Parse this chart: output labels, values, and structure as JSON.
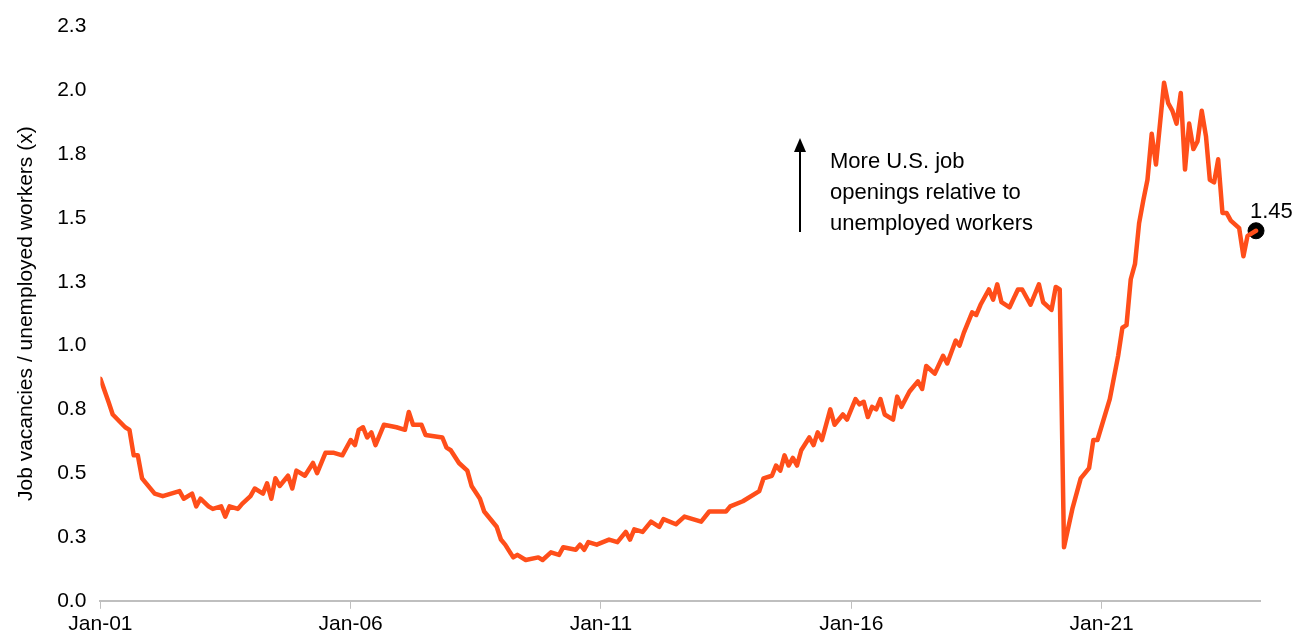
{
  "chart_data": {
    "type": "line",
    "ylabel": "Job vacancies / unemployed workers (x)",
    "x": [
      "2001-01",
      "2001-03",
      "2001-04",
      "2001-07",
      "2001-08",
      "2001-09",
      "2001-10",
      "2001-11",
      "2001-12",
      "2002-02",
      "2002-04",
      "2002-08",
      "2002-09",
      "2002-11",
      "2002-12",
      "2003-01",
      "2003-03",
      "2003-04",
      "2003-06",
      "2003-07",
      "2003-08",
      "2003-10",
      "2003-11",
      "2004-01",
      "2004-02",
      "2004-04",
      "2004-05",
      "2004-06",
      "2004-07",
      "2004-08",
      "2004-10",
      "2004-11",
      "2004-12",
      "2005-02",
      "2005-04",
      "2005-05",
      "2005-07",
      "2005-09",
      "2005-11",
      "2006-01",
      "2006-02",
      "2006-03",
      "2006-04",
      "2006-05",
      "2006-06",
      "2006-07",
      "2006-09",
      "2006-12",
      "2007-02",
      "2007-03",
      "2007-04",
      "2007-06",
      "2007-07",
      "2007-11",
      "2007-12",
      "2008-01",
      "2008-03",
      "2008-05",
      "2008-06",
      "2008-08",
      "2008-09",
      "2008-12",
      "2009-01",
      "2009-02",
      "2009-04",
      "2009-05",
      "2009-07",
      "2009-10",
      "2009-11",
      "2010-01",
      "2010-03",
      "2010-04",
      "2010-07",
      "2010-08",
      "2010-09",
      "2010-10",
      "2010-12",
      "2011-03",
      "2011-05",
      "2011-07",
      "2011-08",
      "2011-09",
      "2011-11",
      "2012-01",
      "2012-03",
      "2012-04",
      "2012-07",
      "2012-09",
      "2013-01",
      "2013-03",
      "2013-07",
      "2013-08",
      "2013-11",
      "2014-03",
      "2014-04",
      "2014-06",
      "2014-07",
      "2014-08",
      "2014-09",
      "2014-10",
      "2014-11",
      "2014-12",
      "2015-01",
      "2015-03",
      "2015-04",
      "2015-05",
      "2015-06",
      "2015-08",
      "2015-09",
      "2015-11",
      "2015-12",
      "2016-02",
      "2016-03",
      "2016-04",
      "2016-05",
      "2016-06",
      "2016-07",
      "2016-08",
      "2016-09",
      "2016-11",
      "2016-12",
      "2017-01",
      "2017-03",
      "2017-05",
      "2017-06",
      "2017-07",
      "2017-09",
      "2017-11",
      "2017-12",
      "2018-02",
      "2018-03",
      "2018-04",
      "2018-06",
      "2018-07",
      "2018-08",
      "2018-10",
      "2018-11",
      "2018-12",
      "2019-01",
      "2019-03",
      "2019-05",
      "2019-06",
      "2019-08",
      "2019-10",
      "2019-11",
      "2020-01",
      "2020-02",
      "2020-03",
      "2020-04",
      "2020-06",
      "2020-08",
      "2020-10",
      "2020-11",
      "2020-12",
      "2021-03",
      "2021-05",
      "2021-06",
      "2021-07",
      "2021-08",
      "2021-09",
      "2021-10",
      "2021-11",
      "2021-12",
      "2022-01",
      "2022-02",
      "2022-04",
      "2022-05",
      "2022-06",
      "2022-07",
      "2022-08",
      "2022-09",
      "2022-10",
      "2022-11",
      "2022-12",
      "2023-01",
      "2023-02",
      "2023-03",
      "2023-04",
      "2023-05",
      "2023-06",
      "2023-07",
      "2023-08",
      "2023-10",
      "2023-11",
      "2023-12",
      "2024-02"
    ],
    "series": [
      {
        "color": "#ff4e1a",
        "marker": "none",
        "values": [
          0.87,
          0.78,
          0.73,
          0.68,
          0.67,
          0.57,
          0.57,
          0.48,
          0.46,
          0.42,
          0.41,
          0.43,
          0.4,
          0.42,
          0.37,
          0.4,
          0.37,
          0.36,
          0.37,
          0.33,
          0.37,
          0.36,
          0.38,
          0.41,
          0.44,
          0.42,
          0.46,
          0.4,
          0.48,
          0.45,
          0.49,
          0.44,
          0.51,
          0.49,
          0.54,
          0.5,
          0.58,
          0.58,
          0.57,
          0.63,
          0.61,
          0.67,
          0.68,
          0.64,
          0.66,
          0.61,
          0.69,
          0.68,
          0.67,
          0.74,
          0.69,
          0.69,
          0.65,
          0.64,
          0.6,
          0.59,
          0.54,
          0.51,
          0.45,
          0.4,
          0.35,
          0.29,
          0.24,
          0.22,
          0.17,
          0.18,
          0.16,
          0.17,
          0.16,
          0.19,
          0.18,
          0.21,
          0.2,
          0.22,
          0.2,
          0.23,
          0.22,
          0.24,
          0.23,
          0.27,
          0.24,
          0.28,
          0.27,
          0.31,
          0.29,
          0.32,
          0.3,
          0.33,
          0.31,
          0.35,
          0.35,
          0.37,
          0.39,
          0.43,
          0.48,
          0.49,
          0.53,
          0.51,
          0.57,
          0.53,
          0.56,
          0.53,
          0.59,
          0.64,
          0.61,
          0.66,
          0.63,
          0.75,
          0.69,
          0.73,
          0.71,
          0.79,
          0.77,
          0.78,
          0.72,
          0.76,
          0.75,
          0.79,
          0.73,
          0.71,
          0.8,
          0.76,
          0.82,
          0.86,
          0.83,
          0.92,
          0.89,
          0.96,
          0.93,
          1.02,
          1.0,
          1.05,
          1.13,
          1.12,
          1.16,
          1.22,
          1.18,
          1.24,
          1.17,
          1.15,
          1.22,
          1.22,
          1.16,
          1.24,
          1.17,
          1.14,
          1.23,
          1.22,
          0.21,
          0.36,
          0.48,
          0.52,
          0.63,
          0.63,
          0.79,
          0.96,
          1.07,
          1.08,
          1.26,
          1.32,
          1.48,
          1.57,
          1.65,
          1.83,
          1.71,
          2.03,
          1.95,
          1.92,
          1.87,
          1.99,
          1.69,
          1.87,
          1.77,
          1.8,
          1.92,
          1.82,
          1.65,
          1.64,
          1.73,
          1.52,
          1.52,
          1.49,
          1.46,
          1.35,
          1.43,
          1.45
        ]
      },
      {
        "type": "scatter",
        "color": "#000000",
        "marker": "circle",
        "x": [
          "2024-02"
        ],
        "values": [
          1.45
        ]
      }
    ],
    "annotations": [
      "More U.S. job\nopenings relative to\nunemployed workers",
      {
        "text": "1.45",
        "x": "2024-02",
        "y": 1.45
      }
    ],
    "xlim": [
      "2001-01",
      "2024-03"
    ],
    "xticks": [
      {
        "value": "2001-01",
        "label": "Jan-01"
      },
      {
        "value": "2006-01",
        "label": "Jan-06"
      },
      {
        "value": "2011-01",
        "label": "Jan-11"
      },
      {
        "value": "2016-01",
        "label": "Jan-16"
      },
      {
        "value": "2021-01",
        "label": "Jan-21"
      }
    ],
    "ylim": [
      0,
      2.25
    ],
    "yticks": [
      {
        "value": 0,
        "label": "0.0"
      },
      {
        "value": 0.25,
        "label": "0.3"
      },
      {
        "value": 0.5,
        "label": "0.5"
      },
      {
        "value": 0.75,
        "label": "0.8"
      },
      {
        "value": 1,
        "label": "1.0"
      },
      {
        "value": 1.25,
        "label": "1.3"
      },
      {
        "value": 1.5,
        "label": "1.5"
      },
      {
        "value": 1.75,
        "label": "1.8"
      },
      {
        "value": 2,
        "label": "2.0"
      },
      {
        "value": 2.25,
        "label": "2.3"
      }
    ],
    "grid": false,
    "legend": false,
    "line_style": "solid"
  }
}
